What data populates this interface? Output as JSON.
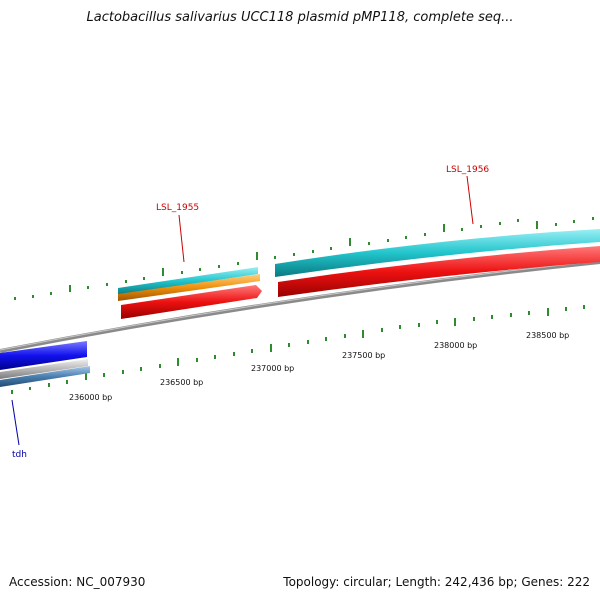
{
  "title": "Lactobacillus salivarius UCC118 plasmid pMP118, complete seq...",
  "accession_label": "Accession: NC_007930",
  "summary_label": "Topology: circular; Length: 242,436 bp; Genes: 222",
  "colors": {
    "backbone": "#8a8a8a",
    "tick": "#2e8b2e",
    "cyan": "#22c4cc",
    "orange": "#f0900c",
    "red": "#ee1111",
    "blue": "#1111ee",
    "steelblue": "#4a7fb0",
    "gene_label_red": "#cc0000",
    "gene_label_blue": "#0000aa"
  },
  "scale_labels": [
    "236000 bp",
    "236500 bp",
    "237000 bp",
    "237500 bp",
    "238000 bp",
    "238500 bp"
  ],
  "genes": [
    {
      "name": "LSL_1955",
      "color": "gene_label_red"
    },
    {
      "name": "LSL_1956",
      "color": "gene_label_red"
    },
    {
      "name": "tdh",
      "color": "gene_label_blue"
    }
  ]
}
